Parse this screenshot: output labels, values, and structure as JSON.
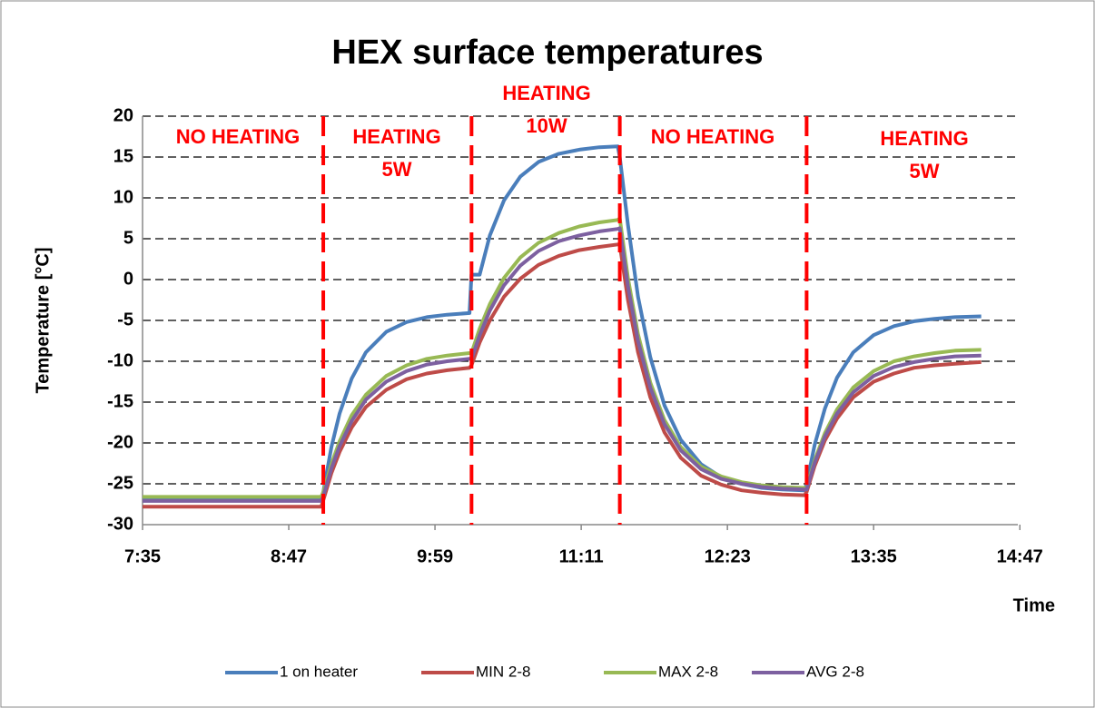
{
  "chart_data": {
    "type": "line",
    "title": "HEX surface temperatures",
    "x_label": "Time",
    "y_label": "Temperature [°C]",
    "x": [
      455,
      470,
      485,
      500,
      515,
      530,
      543,
      544,
      548,
      552,
      558,
      565,
      575,
      585,
      595,
      605,
      616,
      617,
      621,
      626,
      633,
      641,
      650,
      660,
      670,
      680,
      689,
      690,
      694,
      699,
      705,
      712,
      720,
      730,
      740,
      750,
      760,
      770,
      781,
      782,
      786,
      791,
      797,
      805,
      815,
      825,
      835,
      845,
      855,
      868
    ],
    "series": [
      {
        "name": "1 on heater",
        "color": "#4a7ebb",
        "values": [
          -27,
          -27,
          -27,
          -27,
          -27,
          -27,
          -27,
          -26,
          -20.5,
          -16.4,
          -12.1,
          -8.9,
          -6.4,
          -5.2,
          -4.6,
          -4.3,
          -4.1,
          0.6,
          0.6,
          5.4,
          9.7,
          12.6,
          14.4,
          15.4,
          15.9,
          16.2,
          16.3,
          15,
          6.7,
          -2.1,
          -9.5,
          -15.4,
          -19.6,
          -22.6,
          -24.2,
          -25,
          -25.5,
          -25.7,
          -25.8,
          -25,
          -20.2,
          -15.8,
          -12,
          -8.9,
          -6.8,
          -5.7,
          -5.1,
          -4.8,
          -4.6,
          -4.5
        ]
      },
      {
        "name": "MIN 2-8",
        "color": "#be4b48",
        "values": [
          -27.8,
          -27.8,
          -27.8,
          -27.8,
          -27.8,
          -27.8,
          -27.8,
          -27,
          -23.7,
          -21.1,
          -18.1,
          -15.6,
          -13.5,
          -12.2,
          -11.5,
          -11.1,
          -10.8,
          -10.5,
          -7.7,
          -5,
          -2.1,
          0.1,
          1.8,
          2.9,
          3.6,
          4,
          4.3,
          4.3,
          -2.5,
          -8.9,
          -14.4,
          -18.7,
          -21.8,
          -24,
          -25.1,
          -25.8,
          -26.1,
          -26.3,
          -26.4,
          -26,
          -22.8,
          -19.7,
          -17,
          -14.4,
          -12.5,
          -11.5,
          -10.8,
          -10.5,
          -10.3,
          -10.1
        ]
      },
      {
        "name": "MAX 2-8",
        "color": "#98b954",
        "values": [
          -26.6,
          -26.6,
          -26.6,
          -26.6,
          -26.6,
          -26.6,
          -26.6,
          -26,
          -22.6,
          -19.8,
          -16.6,
          -14.1,
          -11.8,
          -10.5,
          -9.7,
          -9.3,
          -9,
          -9,
          -6,
          -3,
          0.2,
          2.7,
          4.5,
          5.7,
          6.5,
          7,
          7.3,
          7.5,
          0.2,
          -6.7,
          -12.6,
          -17.2,
          -20.5,
          -22.9,
          -24.1,
          -24.8,
          -25.2,
          -25.4,
          -25.5,
          -25.5,
          -22.1,
          -18.8,
          -15.9,
          -13.2,
          -11.2,
          -10,
          -9.4,
          -9,
          -8.7,
          -8.6
        ]
      },
      {
        "name": "AVG 2-8",
        "color": "#7d60a0",
        "values": [
          -27.1,
          -27.1,
          -27.1,
          -27.1,
          -27.1,
          -27.1,
          -27.1,
          -26.5,
          -23.1,
          -20.4,
          -17.3,
          -14.7,
          -12.5,
          -11.2,
          -10.4,
          -10,
          -9.7,
          -9.7,
          -6.8,
          -3.8,
          -0.7,
          1.7,
          3.5,
          4.7,
          5.4,
          5.9,
          6.2,
          6.3,
          -0.8,
          -7.5,
          -13.2,
          -17.7,
          -20.9,
          -23.2,
          -24.4,
          -25,
          -25.4,
          -25.6,
          -25.7,
          -25.7,
          -22.4,
          -19.2,
          -16.4,
          -13.8,
          -11.8,
          -10.7,
          -10.1,
          -9.7,
          -9.4,
          -9.3
        ]
      }
    ],
    "xlim": [
      455,
      886
    ],
    "xticks": [
      {
        "value": 455,
        "label": "7:35"
      },
      {
        "value": 527,
        "label": "8:47"
      },
      {
        "value": 599,
        "label": "9:59"
      },
      {
        "value": 671,
        "label": "11:11"
      },
      {
        "value": 743,
        "label": "12:23"
      },
      {
        "value": 815,
        "label": "13:35"
      },
      {
        "value": 887,
        "label": "14:47"
      }
    ],
    "ylim": [
      -30,
      20
    ],
    "yticks": [
      -30,
      -25,
      -20,
      -15,
      -10,
      -5,
      0,
      5,
      10,
      15,
      20
    ],
    "grid": true,
    "dividers": [
      544,
      617,
      690,
      782
    ],
    "divider_color": "#ff0000",
    "annotations": [
      [
        "NO HEATING"
      ],
      [
        "HEATING",
        "5W"
      ],
      [
        "HEATING",
        "10W"
      ],
      [
        "NO HEATING"
      ],
      [
        "HEATING",
        "5W"
      ]
    ],
    "legend": "bottom"
  }
}
